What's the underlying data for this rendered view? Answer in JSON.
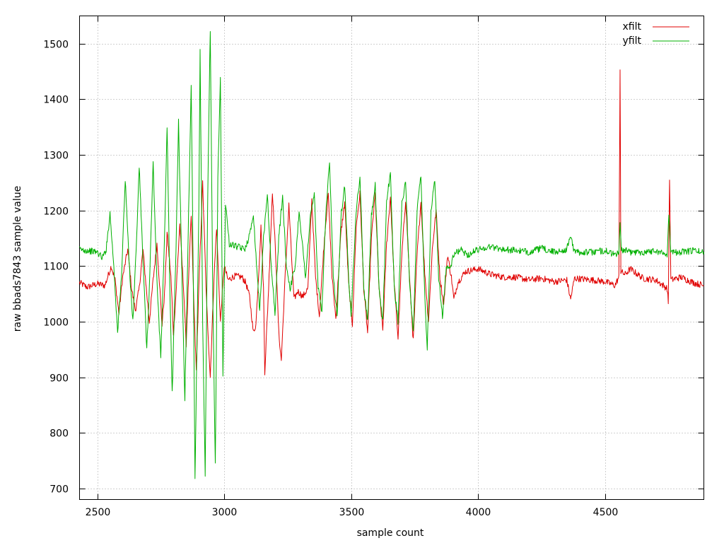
{
  "chart_data": {
    "type": "line",
    "title": "",
    "xlabel": "sample count",
    "ylabel": "raw bbads7843 sample value",
    "xlim": [
      2430,
      4890
    ],
    "ylim": [
      680,
      1550
    ],
    "xticks": [
      2500,
      3000,
      3500,
      4000,
      4500
    ],
    "yticks": [
      700,
      800,
      900,
      1000,
      1100,
      1200,
      1300,
      1400,
      1500
    ],
    "grid": true,
    "legend_position": "top-right",
    "series": [
      {
        "name": "xfilt",
        "color": "#e00000",
        "points": [
          [
            2430,
            1070
          ],
          [
            2460,
            1062
          ],
          [
            2500,
            1068
          ],
          [
            2530,
            1065
          ],
          [
            2555,
            1100
          ],
          [
            2570,
            1075
          ],
          [
            2585,
            1015
          ],
          [
            2600,
            1080
          ],
          [
            2620,
            1130
          ],
          [
            2635,
            1060
          ],
          [
            2650,
            1020
          ],
          [
            2665,
            1060
          ],
          [
            2680,
            1130
          ],
          [
            2695,
            1050
          ],
          [
            2705,
            1000
          ],
          [
            2720,
            1075
          ],
          [
            2735,
            1140
          ],
          [
            2745,
            1070
          ],
          [
            2755,
            995
          ],
          [
            2765,
            1050
          ],
          [
            2775,
            1160
          ],
          [
            2790,
            1080
          ],
          [
            2800,
            980
          ],
          [
            2810,
            1050
          ],
          [
            2825,
            1175
          ],
          [
            2840,
            1060
          ],
          [
            2850,
            960
          ],
          [
            2860,
            1080
          ],
          [
            2870,
            1190
          ],
          [
            2880,
            1040
          ],
          [
            2890,
            910
          ],
          [
            2900,
            1060
          ],
          [
            2915,
            1250
          ],
          [
            2930,
            1040
          ],
          [
            2945,
            900
          ],
          [
            2960,
            1080
          ],
          [
            2970,
            1170
          ],
          [
            2985,
            1000
          ],
          [
            3000,
            1100
          ],
          [
            3015,
            1075
          ],
          [
            3040,
            1082
          ],
          [
            3070,
            1080
          ],
          [
            3085,
            1070
          ],
          [
            3100,
            1045
          ],
          [
            3115,
            980
          ],
          [
            3125,
            995
          ],
          [
            3135,
            1080
          ],
          [
            3145,
            1170
          ],
          [
            3155,
            1060
          ],
          [
            3160,
            910
          ],
          [
            3175,
            1060
          ],
          [
            3190,
            1235
          ],
          [
            3205,
            1100
          ],
          [
            3215,
            980
          ],
          [
            3225,
            930
          ],
          [
            3240,
            1080
          ],
          [
            3255,
            1210
          ],
          [
            3265,
            1120
          ],
          [
            3275,
            1040
          ],
          [
            3290,
            1055
          ],
          [
            3310,
            1045
          ],
          [
            3330,
            1060
          ],
          [
            3345,
            1220
          ],
          [
            3360,
            1080
          ],
          [
            3375,
            1010
          ],
          [
            3395,
            1150
          ],
          [
            3410,
            1230
          ],
          [
            3425,
            1080
          ],
          [
            3440,
            1005
          ],
          [
            3460,
            1160
          ],
          [
            3475,
            1215
          ],
          [
            3490,
            1070
          ],
          [
            3505,
            995
          ],
          [
            3520,
            1170
          ],
          [
            3535,
            1230
          ],
          [
            3550,
            1060
          ],
          [
            3565,
            980
          ],
          [
            3580,
            1150
          ],
          [
            3595,
            1230
          ],
          [
            3610,
            1060
          ],
          [
            3625,
            985
          ],
          [
            3640,
            1140
          ],
          [
            3655,
            1225
          ],
          [
            3670,
            1070
          ],
          [
            3685,
            970
          ],
          [
            3700,
            1120
          ],
          [
            3715,
            1220
          ],
          [
            3730,
            1080
          ],
          [
            3745,
            965
          ],
          [
            3760,
            1120
          ],
          [
            3775,
            1215
          ],
          [
            3790,
            1090
          ],
          [
            3805,
            1000
          ],
          [
            3820,
            1130
          ],
          [
            3835,
            1200
          ],
          [
            3850,
            1080
          ],
          [
            3865,
            1030
          ],
          [
            3880,
            1120
          ],
          [
            3895,
            1080
          ],
          [
            3905,
            1040
          ],
          [
            3920,
            1070
          ],
          [
            3950,
            1090
          ],
          [
            4000,
            1095
          ],
          [
            4050,
            1085
          ],
          [
            4100,
            1080
          ],
          [
            4150,
            1080
          ],
          [
            4200,
            1075
          ],
          [
            4250,
            1078
          ],
          [
            4300,
            1072
          ],
          [
            4350,
            1075
          ],
          [
            4365,
            1040
          ],
          [
            4380,
            1078
          ],
          [
            4450,
            1075
          ],
          [
            4500,
            1072
          ],
          [
            4540,
            1065
          ],
          [
            4555,
            1080
          ],
          [
            4560,
            1458
          ],
          [
            4563,
            1090
          ],
          [
            4580,
            1085
          ],
          [
            4600,
            1095
          ],
          [
            4650,
            1078
          ],
          [
            4700,
            1075
          ],
          [
            4745,
            1060
          ],
          [
            4750,
            1035
          ],
          [
            4755,
            1260
          ],
          [
            4760,
            1075
          ],
          [
            4800,
            1080
          ],
          [
            4850,
            1070
          ],
          [
            4890,
            1065
          ]
        ]
      },
      {
        "name": "yfilt",
        "color": "#00b000",
        "points": [
          [
            2430,
            1130
          ],
          [
            2460,
            1128
          ],
          [
            2500,
            1125
          ],
          [
            2520,
            1115
          ],
          [
            2535,
            1130
          ],
          [
            2550,
            1195
          ],
          [
            2565,
            1100
          ],
          [
            2580,
            980
          ],
          [
            2595,
            1080
          ],
          [
            2610,
            1255
          ],
          [
            2625,
            1110
          ],
          [
            2640,
            1000
          ],
          [
            2655,
            1150
          ],
          [
            2665,
            1280
          ],
          [
            2680,
            1110
          ],
          [
            2695,
            950
          ],
          [
            2705,
            1060
          ],
          [
            2720,
            1285
          ],
          [
            2735,
            1070
          ],
          [
            2750,
            940
          ],
          [
            2765,
            1150
          ],
          [
            2775,
            1350
          ],
          [
            2785,
            1080
          ],
          [
            2795,
            870
          ],
          [
            2810,
            1130
          ],
          [
            2820,
            1360
          ],
          [
            2835,
            1050
          ],
          [
            2845,
            860
          ],
          [
            2860,
            1200
          ],
          [
            2870,
            1425
          ],
          [
            2880,
            1000
          ],
          [
            2885,
            715
          ],
          [
            2900,
            1200
          ],
          [
            2905,
            1485
          ],
          [
            2915,
            1000
          ],
          [
            2925,
            720
          ],
          [
            2935,
            1220
          ],
          [
            2945,
            1525
          ],
          [
            2955,
            1050
          ],
          [
            2965,
            740
          ],
          [
            2975,
            1260
          ],
          [
            2985,
            1440
          ],
          [
            2995,
            900
          ],
          [
            3005,
            1215
          ],
          [
            3020,
            1140
          ],
          [
            3050,
            1135
          ],
          [
            3080,
            1130
          ],
          [
            3100,
            1155
          ],
          [
            3115,
            1195
          ],
          [
            3125,
            1120
          ],
          [
            3140,
            1020
          ],
          [
            3155,
            1150
          ],
          [
            3170,
            1230
          ],
          [
            3185,
            1100
          ],
          [
            3200,
            1015
          ],
          [
            3215,
            1150
          ],
          [
            3230,
            1225
          ],
          [
            3245,
            1100
          ],
          [
            3260,
            1060
          ],
          [
            3280,
            1100
          ],
          [
            3295,
            1200
          ],
          [
            3310,
            1130
          ],
          [
            3320,
            1080
          ],
          [
            3340,
            1190
          ],
          [
            3355,
            1230
          ],
          [
            3370,
            1060
          ],
          [
            3385,
            1020
          ],
          [
            3400,
            1190
          ],
          [
            3415,
            1285
          ],
          [
            3430,
            1080
          ],
          [
            3445,
            1010
          ],
          [
            3460,
            1190
          ],
          [
            3475,
            1245
          ],
          [
            3490,
            1080
          ],
          [
            3500,
            1015
          ],
          [
            3520,
            1200
          ],
          [
            3535,
            1260
          ],
          [
            3550,
            1060
          ],
          [
            3565,
            1000
          ],
          [
            3580,
            1190
          ],
          [
            3595,
            1245
          ],
          [
            3610,
            1060
          ],
          [
            3625,
            1000
          ],
          [
            3640,
            1220
          ],
          [
            3655,
            1265
          ],
          [
            3670,
            1060
          ],
          [
            3685,
            1000
          ],
          [
            3700,
            1215
          ],
          [
            3715,
            1250
          ],
          [
            3730,
            1070
          ],
          [
            3745,
            980
          ],
          [
            3760,
            1200
          ],
          [
            3775,
            1265
          ],
          [
            3790,
            1050
          ],
          [
            3800,
            950
          ],
          [
            3815,
            1200
          ],
          [
            3830,
            1255
          ],
          [
            3845,
            1080
          ],
          [
            3860,
            1010
          ],
          [
            3875,
            1100
          ],
          [
            3890,
            1095
          ],
          [
            3905,
            1120
          ],
          [
            3930,
            1130
          ],
          [
            3960,
            1120
          ],
          [
            4000,
            1130
          ],
          [
            4050,
            1135
          ],
          [
            4100,
            1130
          ],
          [
            4150,
            1128
          ],
          [
            4200,
            1125
          ],
          [
            4250,
            1132
          ],
          [
            4300,
            1125
          ],
          [
            4350,
            1130
          ],
          [
            4365,
            1155
          ],
          [
            4380,
            1125
          ],
          [
            4450,
            1125
          ],
          [
            4500,
            1128
          ],
          [
            4540,
            1120
          ],
          [
            4555,
            1125
          ],
          [
            4560,
            1175
          ],
          [
            4565,
            1130
          ],
          [
            4600,
            1125
          ],
          [
            4650,
            1125
          ],
          [
            4700,
            1128
          ],
          [
            4745,
            1120
          ],
          [
            4752,
            1195
          ],
          [
            4760,
            1125
          ],
          [
            4800,
            1125
          ],
          [
            4850,
            1128
          ],
          [
            4890,
            1125
          ]
        ]
      }
    ]
  }
}
